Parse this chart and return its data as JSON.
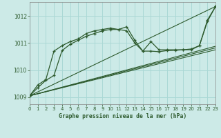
{
  "title": "Graphe pression niveau de la mer (hPa)",
  "background_color": "#cceae7",
  "grid_color": "#aad8d5",
  "line_color": "#2d5a2d",
  "xlim": [
    0,
    23
  ],
  "ylim": [
    1008.75,
    1012.5
  ],
  "yticks": [
    1009,
    1010,
    1011,
    1012
  ],
  "xticks": [
    0,
    1,
    2,
    3,
    4,
    5,
    6,
    7,
    8,
    9,
    10,
    11,
    12,
    13,
    14,
    15,
    16,
    17,
    18,
    19,
    20,
    21,
    22,
    23
  ],
  "series": [
    {
      "x": [
        0,
        1,
        2,
        3,
        4,
        5,
        6,
        7,
        8,
        9,
        10,
        11,
        12,
        13,
        14,
        15,
        16,
        17,
        18,
        19,
        20,
        21,
        22,
        23
      ],
      "y": [
        1009.05,
        1009.45,
        1009.65,
        1010.7,
        1010.9,
        1011.05,
        1011.15,
        1011.35,
        1011.45,
        1011.5,
        1011.55,
        1011.5,
        1011.6,
        1011.1,
        1010.7,
        1011.05,
        1010.75,
        1010.75,
        1010.75,
        1010.75,
        1010.75,
        1010.9,
        1011.85,
        1012.35
      ],
      "has_markers": true
    },
    {
      "x": [
        0,
        1,
        2,
        3,
        4,
        5,
        6,
        7,
        8,
        9,
        10,
        11,
        12,
        13,
        14,
        15,
        16,
        17,
        18,
        19,
        20,
        21,
        22,
        23
      ],
      "y": [
        1009.05,
        1009.35,
        1009.62,
        1009.8,
        1010.72,
        1010.95,
        1011.1,
        1011.25,
        1011.35,
        1011.45,
        1011.5,
        1011.5,
        1011.45,
        1011.0,
        1010.7,
        1010.7,
        1010.68,
        1010.72,
        1010.73,
        1010.75,
        1010.78,
        1010.9,
        1011.8,
        1012.35
      ],
      "has_markers": true
    },
    {
      "x": [
        0,
        23
      ],
      "y": [
        1009.05,
        1012.35
      ],
      "has_markers": false
    },
    {
      "x": [
        0,
        23
      ],
      "y": [
        1009.05,
        1010.75
      ],
      "has_markers": false
    },
    {
      "x": [
        0,
        23
      ],
      "y": [
        1009.05,
        1010.82
      ],
      "has_markers": false
    },
    {
      "x": [
        0,
        23
      ],
      "y": [
        1009.05,
        1010.88
      ],
      "has_markers": false
    }
  ]
}
